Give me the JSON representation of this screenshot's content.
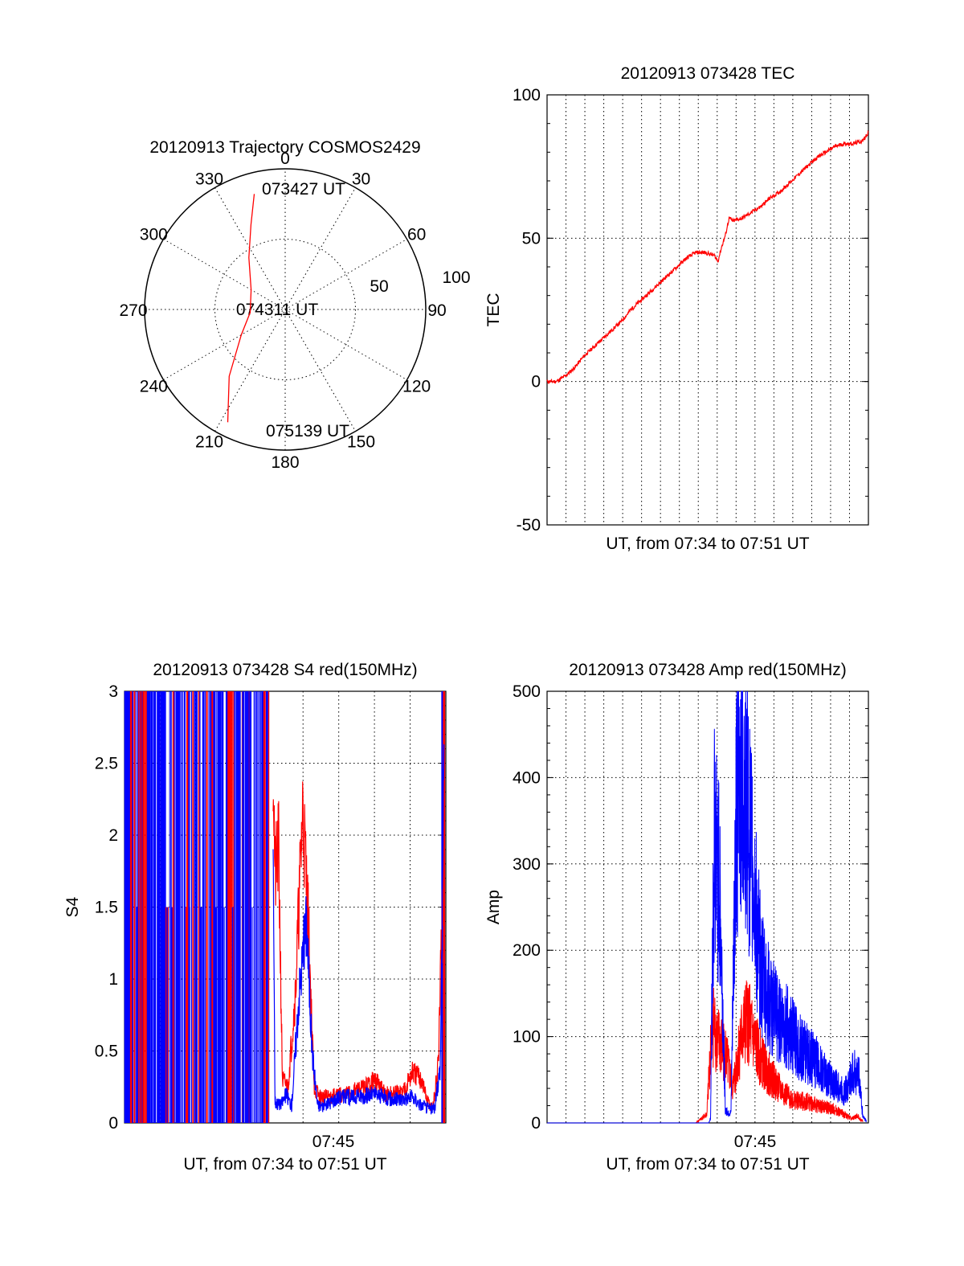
{
  "chart_data": [
    {
      "type": "polar",
      "title": "20120913 Trajectory COSMOS2429",
      "angle_labels": [
        "0",
        "30",
        "60",
        "90",
        "120",
        "150",
        "180",
        "210",
        "240",
        "270",
        "300",
        "330"
      ],
      "radial_labels": [
        "50",
        "100"
      ],
      "radial_range": [
        0,
        100
      ],
      "grid": true,
      "annotations": [
        "073427 UT",
        "074311 UT",
        "075139 UT"
      ],
      "series": [
        {
          "color": "#ff0000",
          "points": [
            [
              345,
              85
            ],
            [
              338,
              65
            ],
            [
              325,
              45
            ],
            [
              300,
              28
            ],
            [
              265,
              25
            ],
            [
              240,
              36
            ],
            [
              220,
              62
            ],
            [
              207,
              90
            ]
          ]
        }
      ]
    },
    {
      "type": "line",
      "title": "20120913 073428 TEC",
      "xlabel": "UT, from 07:34 to 07:51 UT",
      "ylabel": "TEC",
      "ylim": [
        -50,
        100
      ],
      "yticks": [
        "-50",
        "0",
        "50",
        "100"
      ],
      "xlim": [
        0,
        17.3
      ],
      "grid": true,
      "series": [
        {
          "color": "#ff0000",
          "x": [
            0,
            0.5,
            1,
            1.5,
            2,
            2.5,
            3,
            3.5,
            4,
            4.5,
            5,
            5.5,
            6,
            6.5,
            7,
            7.5,
            8,
            8.5,
            9,
            9.2,
            9.4,
            9.6,
            9.8,
            10,
            10.5,
            11,
            11.5,
            12,
            12.5,
            13,
            13.5,
            14,
            14.5,
            15,
            15.5,
            16,
            16.5,
            17,
            17.3
          ],
          "y": [
            0,
            0,
            2,
            5,
            9,
            12,
            15,
            18,
            21,
            25,
            28,
            31,
            34,
            37,
            40,
            43,
            45,
            45,
            44,
            42,
            47,
            51,
            57,
            56,
            57,
            59,
            61,
            64,
            66,
            69,
            72,
            75,
            78,
            80,
            82,
            83,
            83,
            84,
            87
          ]
        }
      ]
    },
    {
      "type": "line",
      "title": "20120913 073428 S4 red(150MHz)",
      "xlabel": "UT, from 07:34 to 07:51 UT",
      "ylabel": "S4",
      "ylim": [
        0,
        3
      ],
      "yticks": [
        "0",
        "0.5",
        "1",
        "1.5",
        "2",
        "2.5",
        "3"
      ],
      "xlim": [
        0,
        17.3
      ],
      "xticks": [
        "07:45"
      ],
      "grid": true,
      "series": [
        {
          "color": "#ff0000",
          "x": [
            8,
            8.1,
            8.3,
            8.5,
            8.8,
            9.2,
            9.6,
            9.9,
            10.2,
            10.5,
            11,
            12,
            13,
            13.5,
            14,
            14.5,
            15,
            15.5,
            16,
            16.3,
            16.6,
            16.9,
            17.2
          ],
          "y": [
            2.6,
            1.7,
            1.9,
            0.3,
            0.25,
            0.9,
            2.2,
            1.4,
            0.25,
            0.18,
            0.18,
            0.2,
            0.25,
            0.3,
            0.2,
            0.2,
            0.22,
            0.35,
            0.3,
            0.15,
            0.1,
            0.4,
            2.0
          ]
        },
        {
          "color": "#0000ff",
          "x": [
            8,
            8.1,
            8.4,
            8.7,
            9,
            9.4,
            9.8,
            10.1,
            10.4,
            10.8,
            11.5,
            12.5,
            13.5,
            14.5,
            15.5,
            16,
            16.4,
            16.7,
            17,
            17.2
          ],
          "y": [
            2.1,
            0.15,
            0.12,
            0.2,
            0.12,
            0.9,
            1.4,
            0.5,
            0.12,
            0.12,
            0.18,
            0.18,
            0.2,
            0.16,
            0.18,
            0.12,
            0.1,
            0.1,
            0.4,
            2.5
          ]
        }
      ]
    },
    {
      "type": "line",
      "title": "20120913 073428 Amp red(150MHz)",
      "xlabel": "UT, from 07:34 to 07:51 UT",
      "ylabel": "Amp",
      "ylim": [
        0,
        500
      ],
      "yticks": [
        "0",
        "100",
        "200",
        "300",
        "400",
        "500"
      ],
      "xlim": [
        0,
        17.3
      ],
      "xticks": [
        "07:45"
      ],
      "grid": true,
      "series": [
        {
          "color": "#ff0000",
          "x": [
            0,
            8,
            8.6,
            8.9,
            9.2,
            9.6,
            10,
            10.4,
            10.8,
            11.2,
            11.6,
            12,
            12.5,
            13,
            13.5,
            14,
            14.5,
            15,
            15.5,
            16,
            16.4,
            16.7,
            17
          ],
          "y": [
            0,
            0,
            10,
            120,
            95,
            80,
            40,
            95,
            120,
            90,
            70,
            55,
            40,
            30,
            25,
            25,
            20,
            18,
            15,
            10,
            5,
            8,
            2
          ]
        },
        {
          "color": "#0000ff",
          "x": [
            0,
            8.7,
            8.8,
            9,
            9.3,
            9.6,
            9.9,
            10.2,
            10.5,
            11,
            11.5,
            12,
            12.5,
            13,
            13.5,
            14,
            14.5,
            15,
            15.5,
            16,
            16.5,
            16.8,
            17,
            17.2
          ],
          "y": [
            0,
            0,
            5,
            340,
            260,
            15,
            10,
            380,
            420,
            310,
            180,
            140,
            120,
            110,
            90,
            80,
            70,
            55,
            45,
            35,
            60,
            55,
            8,
            2
          ]
        }
      ]
    }
  ]
}
